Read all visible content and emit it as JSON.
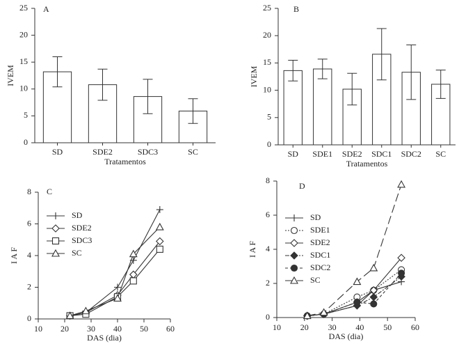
{
  "chart_data": [
    {
      "type": "bar",
      "panel_label": "A",
      "ylabel": "IVEM",
      "xlabel": "Tratamentos",
      "categories": [
        "SD",
        "SDE2",
        "SDC3",
        "SC"
      ],
      "values": [
        13.2,
        10.8,
        8.6,
        5.9
      ],
      "errors": [
        2.8,
        2.9,
        3.2,
        2.3
      ],
      "color": "#ffffff",
      "ylim": [
        0,
        25
      ],
      "yticks": [
        0,
        5,
        10,
        15,
        20,
        25
      ]
    },
    {
      "type": "bar",
      "panel_label": "B",
      "ylabel": "IVEM",
      "xlabel": "Tratamentos",
      "categories": [
        "SD",
        "SDE1",
        "SDE2",
        "SDC1",
        "SDC2",
        "SC"
      ],
      "values": [
        13.6,
        13.9,
        10.2,
        16.6,
        13.3,
        11.1
      ],
      "errors": [
        1.9,
        1.8,
        2.9,
        4.7,
        5.0,
        2.6
      ],
      "color": "#ffffff",
      "ylim": [
        0,
        25
      ],
      "yticks": [
        0,
        5,
        10,
        15,
        20,
        25
      ]
    },
    {
      "type": "line",
      "panel_label": "C",
      "ylabel": "I A F",
      "xlabel": "DAS (dia)",
      "legend": "upper left",
      "x": [
        22,
        28,
        40,
        46,
        56
      ],
      "xlim": [
        10,
        60
      ],
      "xticks": [
        10,
        20,
        30,
        40,
        50,
        60
      ],
      "ylim": [
        0,
        8
      ],
      "yticks": [
        0,
        2,
        4,
        6,
        8
      ],
      "series": [
        {
          "name": "SD",
          "color": "#333333",
          "marker": "plus",
          "dash": "solid",
          "values": [
            0.2,
            0.4,
            2.0,
            3.7,
            6.9
          ]
        },
        {
          "name": "SDE2",
          "color": "#333333",
          "marker": "diamond",
          "dash": "solid",
          "values": [
            0.2,
            0.4,
            1.5,
            2.8,
            4.9
          ]
        },
        {
          "name": "SDC3",
          "color": "#333333",
          "marker": "square",
          "dash": "solid",
          "values": [
            0.2,
            0.3,
            1.4,
            2.4,
            4.4
          ]
        },
        {
          "name": "SC",
          "color": "#333333",
          "marker": "triangle",
          "dash": "solid",
          "values": [
            0.2,
            0.5,
            1.3,
            4.1,
            5.8
          ]
        }
      ]
    },
    {
      "type": "line",
      "panel_label": "D",
      "ylabel": "I A F",
      "xlabel": "DAS (dia)",
      "legend": "upper left",
      "x": [
        21,
        27,
        39,
        45,
        55
      ],
      "xlim": [
        10,
        60
      ],
      "xticks": [
        10,
        20,
        30,
        40,
        50,
        60
      ],
      "ylim": [
        0,
        8
      ],
      "yticks": [
        0,
        2,
        4,
        6,
        8
      ],
      "series": [
        {
          "name": "SD",
          "color": "#333333",
          "marker": "plus",
          "dash": "solid",
          "values": [
            0.1,
            0.2,
            0.7,
            1.6,
            2.1
          ]
        },
        {
          "name": "SDE1",
          "color": "#333333",
          "marker": "circle",
          "dash": "dotted",
          "values": [
            0.1,
            0.2,
            1.2,
            1.6,
            2.8
          ]
        },
        {
          "name": "SDE2",
          "color": "#333333",
          "marker": "diamond",
          "dash": "solid",
          "values": [
            0.1,
            0.2,
            0.9,
            1.6,
            3.5
          ]
        },
        {
          "name": "SDC1",
          "color": "#333333",
          "marker": "filled-diamond",
          "dash": "dashdot",
          "values": [
            0.1,
            0.2,
            0.7,
            1.2,
            2.4
          ]
        },
        {
          "name": "SDC2",
          "color": "#333333",
          "marker": "filled-circle",
          "dash": "dashed",
          "values": [
            0.1,
            0.2,
            0.9,
            0.8,
            2.6
          ]
        },
        {
          "name": "SC",
          "color": "#333333",
          "marker": "triangle",
          "dash": "longdash",
          "values": [
            0.1,
            0.3,
            2.1,
            2.9,
            7.8
          ]
        }
      ]
    }
  ]
}
